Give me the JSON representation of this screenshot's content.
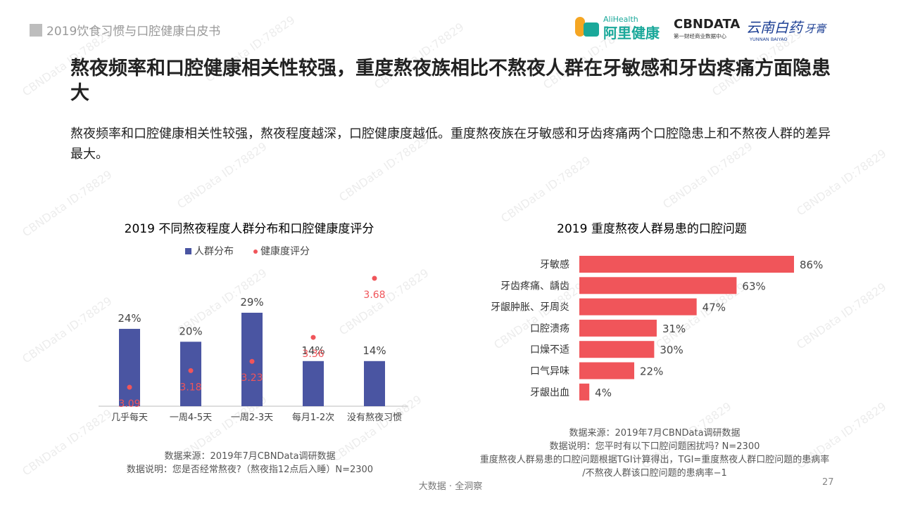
{
  "doc_tag": "2019饮食习惯与口腔健康白皮书",
  "logos": {
    "alihealth_en": "AliHealth",
    "alihealth_cn": "阿里健康",
    "cbndata": "CBNDATA",
    "cbndata_sub": "第一财经商业数据中心",
    "yunnan_cn": "云南白药",
    "yunnan_en": "YUNNAN BAIYAO",
    "yunnan_product": "牙膏"
  },
  "headline": "熬夜频率和口腔健康相关性较强，重度熬夜族相比不熬夜人群在牙敏感和牙齿疼痛方面隐患大",
  "subline": "熬夜频率和口腔健康相关性较强，熬夜程度越深，口腔健康度越低。重度熬夜族在牙敏感和牙齿疼痛两个口腔隐患上和不熬夜人群的差异最大。",
  "watermark": "CBNData ID:78829",
  "footer": "大数据 · 全洞察",
  "page_number": "27",
  "chart_data": [
    {
      "type": "bar",
      "title": "2019 不同熬夜程度人群分布和口腔健康度评分",
      "categories": [
        "几乎每天",
        "一周4-5天",
        "一周2-3天",
        "每月1-2次",
        "没有熬夜习惯"
      ],
      "series": [
        {
          "name": "人群分布",
          "type": "bar",
          "values": [
            24,
            20,
            29,
            14,
            14
          ],
          "labels": [
            "24%",
            "20%",
            "29%",
            "14%",
            "14%"
          ],
          "color": "#4a55a2"
        },
        {
          "name": "健康度评分",
          "type": "scatter",
          "values": [
            3.09,
            3.18,
            3.23,
            3.36,
            3.68
          ],
          "labels": [
            "3.09",
            "3.18",
            "3.23",
            "3.36",
            "3.68"
          ],
          "color": "#f0555a"
        }
      ],
      "notes": [
        "数据来源：2019年7月CBNData调研数据",
        "数据说明：您是否经常熬夜?（熬夜指12点后入睡）N=2300"
      ]
    },
    {
      "type": "bar",
      "orientation": "horizontal",
      "title": "2019 重度熬夜人群易患的口腔问题",
      "categories": [
        "牙敏感",
        "牙齿疼痛、龋齿",
        "牙龈肿胀、牙周炎",
        "口腔溃疡",
        "口燥不适",
        "口气异味",
        "牙龈出血"
      ],
      "values": [
        86,
        63,
        47,
        31,
        30,
        22,
        4
      ],
      "labels": [
        "86%",
        "63%",
        "47%",
        "31%",
        "30%",
        "22%",
        "4%"
      ],
      "color": "#f0555a",
      "notes": [
        "数据来源：2019年7月CBNData调研数据",
        "数据说明：您平时有以下口腔问题困扰吗? N=2300",
        "重度熬夜人群易患的口腔问题根据TGI计算得出，TGI=重度熬夜人群口腔问题的患病率",
        "/不熬夜人群该口腔问题的患病率−1"
      ]
    }
  ]
}
